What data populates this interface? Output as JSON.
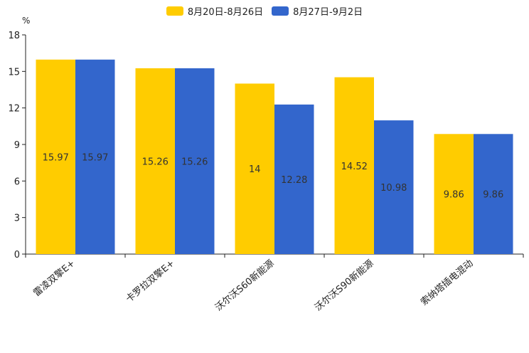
{
  "chart_data": {
    "type": "bar",
    "unit": "%",
    "categories": [
      "雷凌双擎E+",
      "卡罗拉双擎E+",
      "沃尔沃S60新能源",
      "沃尔沃S90新能源",
      "索纳塔插电混动"
    ],
    "series": [
      {
        "name": "8月20日-8月26日",
        "color": "#ffcc00",
        "values": [
          15.97,
          15.26,
          14,
          14.52,
          9.86
        ]
      },
      {
        "name": "8月27日-9月2日",
        "color": "#3366cc",
        "values": [
          15.97,
          15.26,
          12.28,
          10.98,
          9.86
        ]
      }
    ],
    "yticks": [
      0,
      3,
      6,
      9,
      12,
      15,
      18
    ],
    "ylim": [
      0,
      18
    ],
    "grid": false,
    "legend_position": "top-center"
  }
}
